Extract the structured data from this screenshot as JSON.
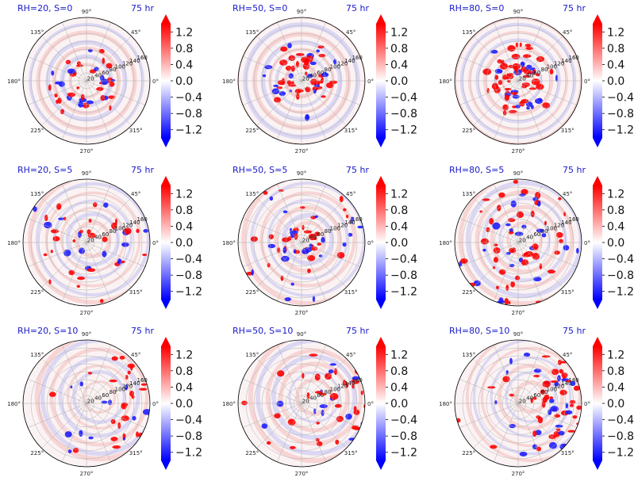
{
  "figure": {
    "time_label": "75 hr",
    "colormap": "bwr",
    "colors": {
      "negative": "#0000ff",
      "zero": "#ffffff",
      "positive": "#ff0000",
      "title": "#1a1acc"
    }
  },
  "chart_data": {
    "type": "heatmap",
    "projection": "polar",
    "layout": "3x3 grid",
    "panels": [
      {
        "title": "RH=20, S=0",
        "time": "75 hr",
        "row": 0,
        "col": 0
      },
      {
        "title": "RH=50, S=0",
        "time": "75 hr",
        "row": 0,
        "col": 1
      },
      {
        "title": "RH=80, S=0",
        "time": "75 hr",
        "row": 0,
        "col": 2
      },
      {
        "title": "RH=20, S=5",
        "time": "75 hr",
        "row": 1,
        "col": 0
      },
      {
        "title": "RH=50, S=5",
        "time": "75 hr",
        "row": 1,
        "col": 1
      },
      {
        "title": "RH=80, S=5",
        "time": "75 hr",
        "row": 1,
        "col": 2
      },
      {
        "title": "RH=20, S=10",
        "time": "75 hr",
        "row": 2,
        "col": 0
      },
      {
        "title": "RH=50, S=10",
        "time": "75 hr",
        "row": 2,
        "col": 1
      },
      {
        "title": "RH=80, S=10",
        "time": "75 hr",
        "row": 2,
        "col": 2
      }
    ],
    "angular_ticks": [
      "0°",
      "45°",
      "90°",
      "135°",
      "180°",
      "225°",
      "270°",
      "315°"
    ],
    "radial_ticks": [
      "20",
      "40",
      "60",
      "80",
      "100",
      "120",
      "140",
      "160"
    ],
    "colorbar": {
      "ticks": [
        "1.2",
        "0.8",
        "0.4",
        "0.0",
        "−0.4",
        "−0.8",
        "−1.2"
      ],
      "tick_values": [
        1.2,
        0.8,
        0.4,
        0.0,
        -0.4,
        -0.8,
        -1.2
      ],
      "range": [
        -1.4,
        1.4
      ],
      "extend": "both"
    }
  }
}
